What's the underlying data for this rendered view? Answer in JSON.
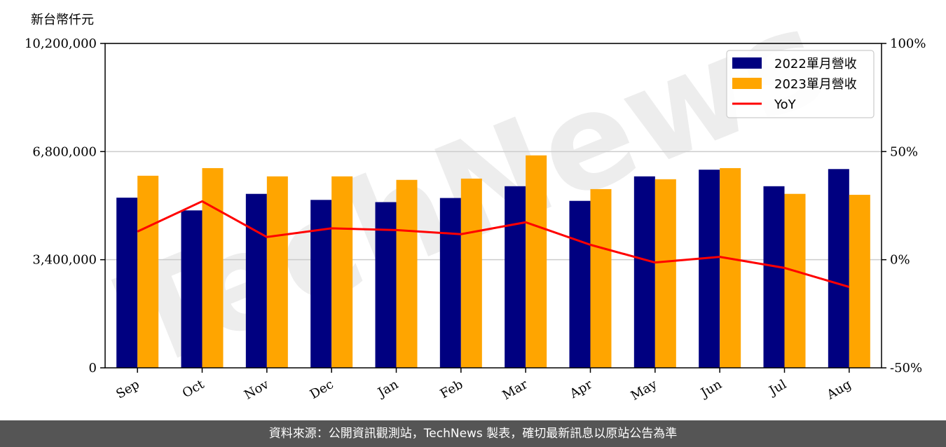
{
  "chart_data": {
    "type": "bar",
    "unit_label": "新台幣仟元",
    "categories": [
      "Sep",
      "Oct",
      "Nov",
      "Dec",
      "Jan",
      "Feb",
      "Mar",
      "Apr",
      "May",
      "Jun",
      "Jul",
      "Aug"
    ],
    "series": [
      {
        "name": "2022單月營收",
        "color": "#000080",
        "values": [
          5350000,
          4950000,
          5470000,
          5280000,
          5210000,
          5340000,
          5710000,
          5250000,
          6020000,
          6230000,
          5710000,
          6250000
        ]
      },
      {
        "name": "2023單月營收",
        "color": "#FFA500",
        "values": [
          6040000,
          6280000,
          6020000,
          6020000,
          5910000,
          5950000,
          6680000,
          5620000,
          5930000,
          6280000,
          5470000,
          5440000
        ]
      }
    ],
    "line_series": {
      "name": "YoY",
      "color": "#FF0000",
      "axis": "right",
      "values": [
        13.0,
        27.0,
        10.5,
        14.5,
        13.7,
        11.8,
        17.3,
        6.9,
        -1.3,
        1.3,
        -3.8,
        -12.6
      ]
    },
    "y_left": {
      "ylim": [
        0,
        10200000
      ],
      "ticks": [
        0,
        3400000,
        6800000,
        10200000
      ],
      "tick_labels": [
        "0",
        "3,400,000",
        "6,800,000",
        "10,200,000"
      ]
    },
    "y_right": {
      "ylim": [
        -50,
        100
      ],
      "ticks": [
        -50,
        0,
        50,
        100
      ],
      "tick_labels": [
        "-50%",
        "0%",
        "50%",
        "100%"
      ]
    },
    "grid": "horizontal",
    "legend": "top-right",
    "watermark": "TechNews"
  },
  "footer": {
    "text": "資料來源：公開資訊觀測站，TechNews 製表，確切最新訊息以原站公告為準"
  }
}
